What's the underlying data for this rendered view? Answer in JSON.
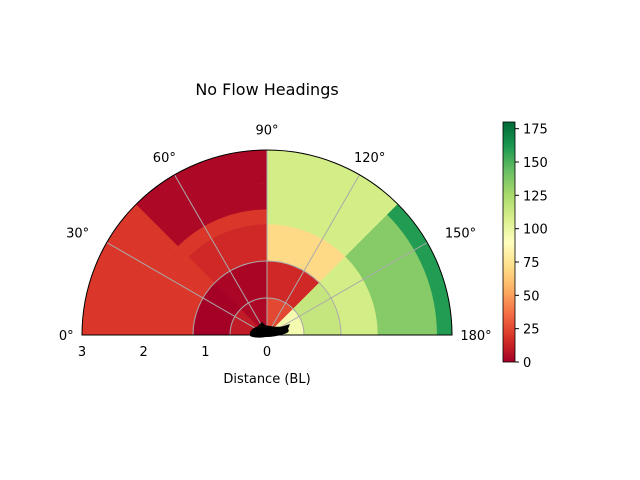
{
  "chart_data": {
    "type": "heatmap",
    "subtype": "polar-half-sector",
    "title": "No Flow Headings",
    "xlabel": "Distance (BL)",
    "theta_range_deg": [
      0,
      180
    ],
    "theta_tick_labels": [
      "0°",
      "30°",
      "60°",
      "90°",
      "120°",
      "150°",
      "180°"
    ],
    "r_range": [
      0,
      3
    ],
    "r_tick_labels": [
      "3",
      "2",
      "1",
      "0"
    ],
    "r_grid": [
      1,
      2
    ],
    "theta_bins_deg": [
      0,
      45,
      90,
      135,
      180
    ],
    "r_bins": [
      0,
      1,
      2,
      3
    ],
    "cells": [
      {
        "r": [
          0,
          1
        ],
        "theta": [
          0,
          45
        ],
        "value": 10
      },
      {
        "r": [
          0,
          1
        ],
        "theta": [
          45,
          90
        ],
        "value": 3
      },
      {
        "r": [
          0,
          1
        ],
        "theta": [
          90,
          135
        ],
        "value": 25
      },
      {
        "r": [
          0,
          1
        ],
        "theta": [
          135,
          180
        ],
        "value": 95
      },
      {
        "r": [
          1,
          2
        ],
        "theta": [
          0,
          45
        ],
        "value": 0
      },
      {
        "r": [
          1,
          2
        ],
        "theta": [
          45,
          90
        ],
        "value": 2
      },
      {
        "r": [
          1,
          2
        ],
        "theta": [
          90,
          135
        ],
        "value": 15
      },
      {
        "r": [
          1,
          2
        ],
        "theta": [
          135,
          180
        ],
        "value": 115
      },
      {
        "r": [
          2,
          3
        ],
        "theta": [
          0,
          45
        ],
        "value": 20
      },
      {
        "r": [
          2,
          3
        ],
        "theta": [
          45,
          90
        ],
        "value": 15
      },
      {
        "r": [
          2,
          3
        ],
        "theta": [
          90,
          135
        ],
        "value": 70
      },
      {
        "r": [
          2,
          3
        ],
        "theta": [
          135,
          180
        ],
        "value": 110
      },
      {
        "r": [
          3,
          3.4
        ],
        "theta": [
          0,
          45
        ],
        "value": 20
      },
      {
        "r": [
          3,
          3.4
        ],
        "theta": [
          45,
          90
        ],
        "value": 20
      },
      {
        "r": [
          3,
          3.4
        ],
        "theta": [
          90,
          135
        ],
        "value": 110
      },
      {
        "r": [
          3,
          3.4
        ],
        "theta": [
          135,
          180
        ],
        "value": 135
      },
      {
        "r": [
          3.4,
          4.1
        ],
        "theta": [
          0,
          45
        ],
        "value": 20
      },
      {
        "r": [
          3.4,
          4.1
        ],
        "theta": [
          45,
          90
        ],
        "value": 3
      },
      {
        "r": [
          3.4,
          4.1
        ],
        "theta": [
          90,
          135
        ],
        "value": 110
      },
      {
        "r": [
          3.4,
          4.1
        ],
        "theta": [
          135,
          180
        ],
        "value": 135
      },
      {
        "r": [
          4.1,
          4.6
        ],
        "theta": [
          0,
          45
        ],
        "value": 20
      },
      {
        "r": [
          4.1,
          4.6
        ],
        "theta": [
          45,
          90
        ],
        "value": 3
      },
      {
        "r": [
          4.1,
          4.6
        ],
        "theta": [
          90,
          135
        ],
        "value": 110
      },
      {
        "r": [
          4.1,
          4.6
        ],
        "theta": [
          135,
          180
        ],
        "value": 135
      },
      {
        "r": [
          4.6,
          5.0
        ],
        "theta": [
          0,
          45
        ],
        "value": 20
      },
      {
        "r": [
          4.6,
          5.0
        ],
        "theta": [
          45,
          90
        ],
        "value": 3
      },
      {
        "r": [
          4.6,
          5.0
        ],
        "theta": [
          90,
          135
        ],
        "value": 110
      },
      {
        "r": [
          4.6,
          5.0
        ],
        "theta": [
          135,
          180
        ],
        "value": 160
      }
    ],
    "colorbar": {
      "colormap": "RdYlGn",
      "range": [
        0,
        180
      ],
      "tick_values": [
        0,
        25,
        50,
        75,
        100,
        125,
        150,
        175
      ],
      "tick_labels": [
        "0",
        "25",
        "50",
        "75",
        "100",
        "125",
        "150",
        "175"
      ]
    },
    "grid": true
  }
}
